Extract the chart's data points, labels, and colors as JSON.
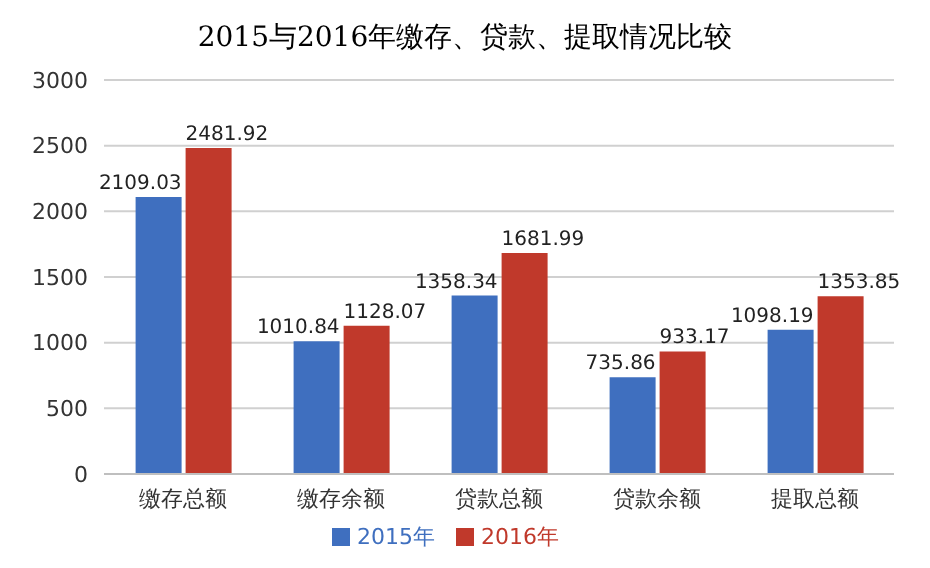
{
  "chart_data": {
    "type": "bar",
    "title": "2015与2016年缴存、贷款、提取情况比较",
    "categories": [
      "缴存总额",
      "缴存余额",
      "贷款总额",
      "贷款余额",
      "提取总额"
    ],
    "series": [
      {
        "name": "2015年",
        "color": "#3f6fbf",
        "values": [
          2109.03,
          1010.84,
          1358.34,
          735.86,
          1098.19
        ]
      },
      {
        "name": "2016年",
        "color": "#c0392b",
        "values": [
          2481.92,
          1128.07,
          1681.99,
          933.17,
          1353.85
        ]
      }
    ],
    "ylim": [
      0,
      3000
    ],
    "yticks": [
      0,
      500,
      1000,
      1500,
      2000,
      2500,
      3000
    ],
    "grid": "y",
    "legend": "bottom",
    "data_labels": true
  }
}
